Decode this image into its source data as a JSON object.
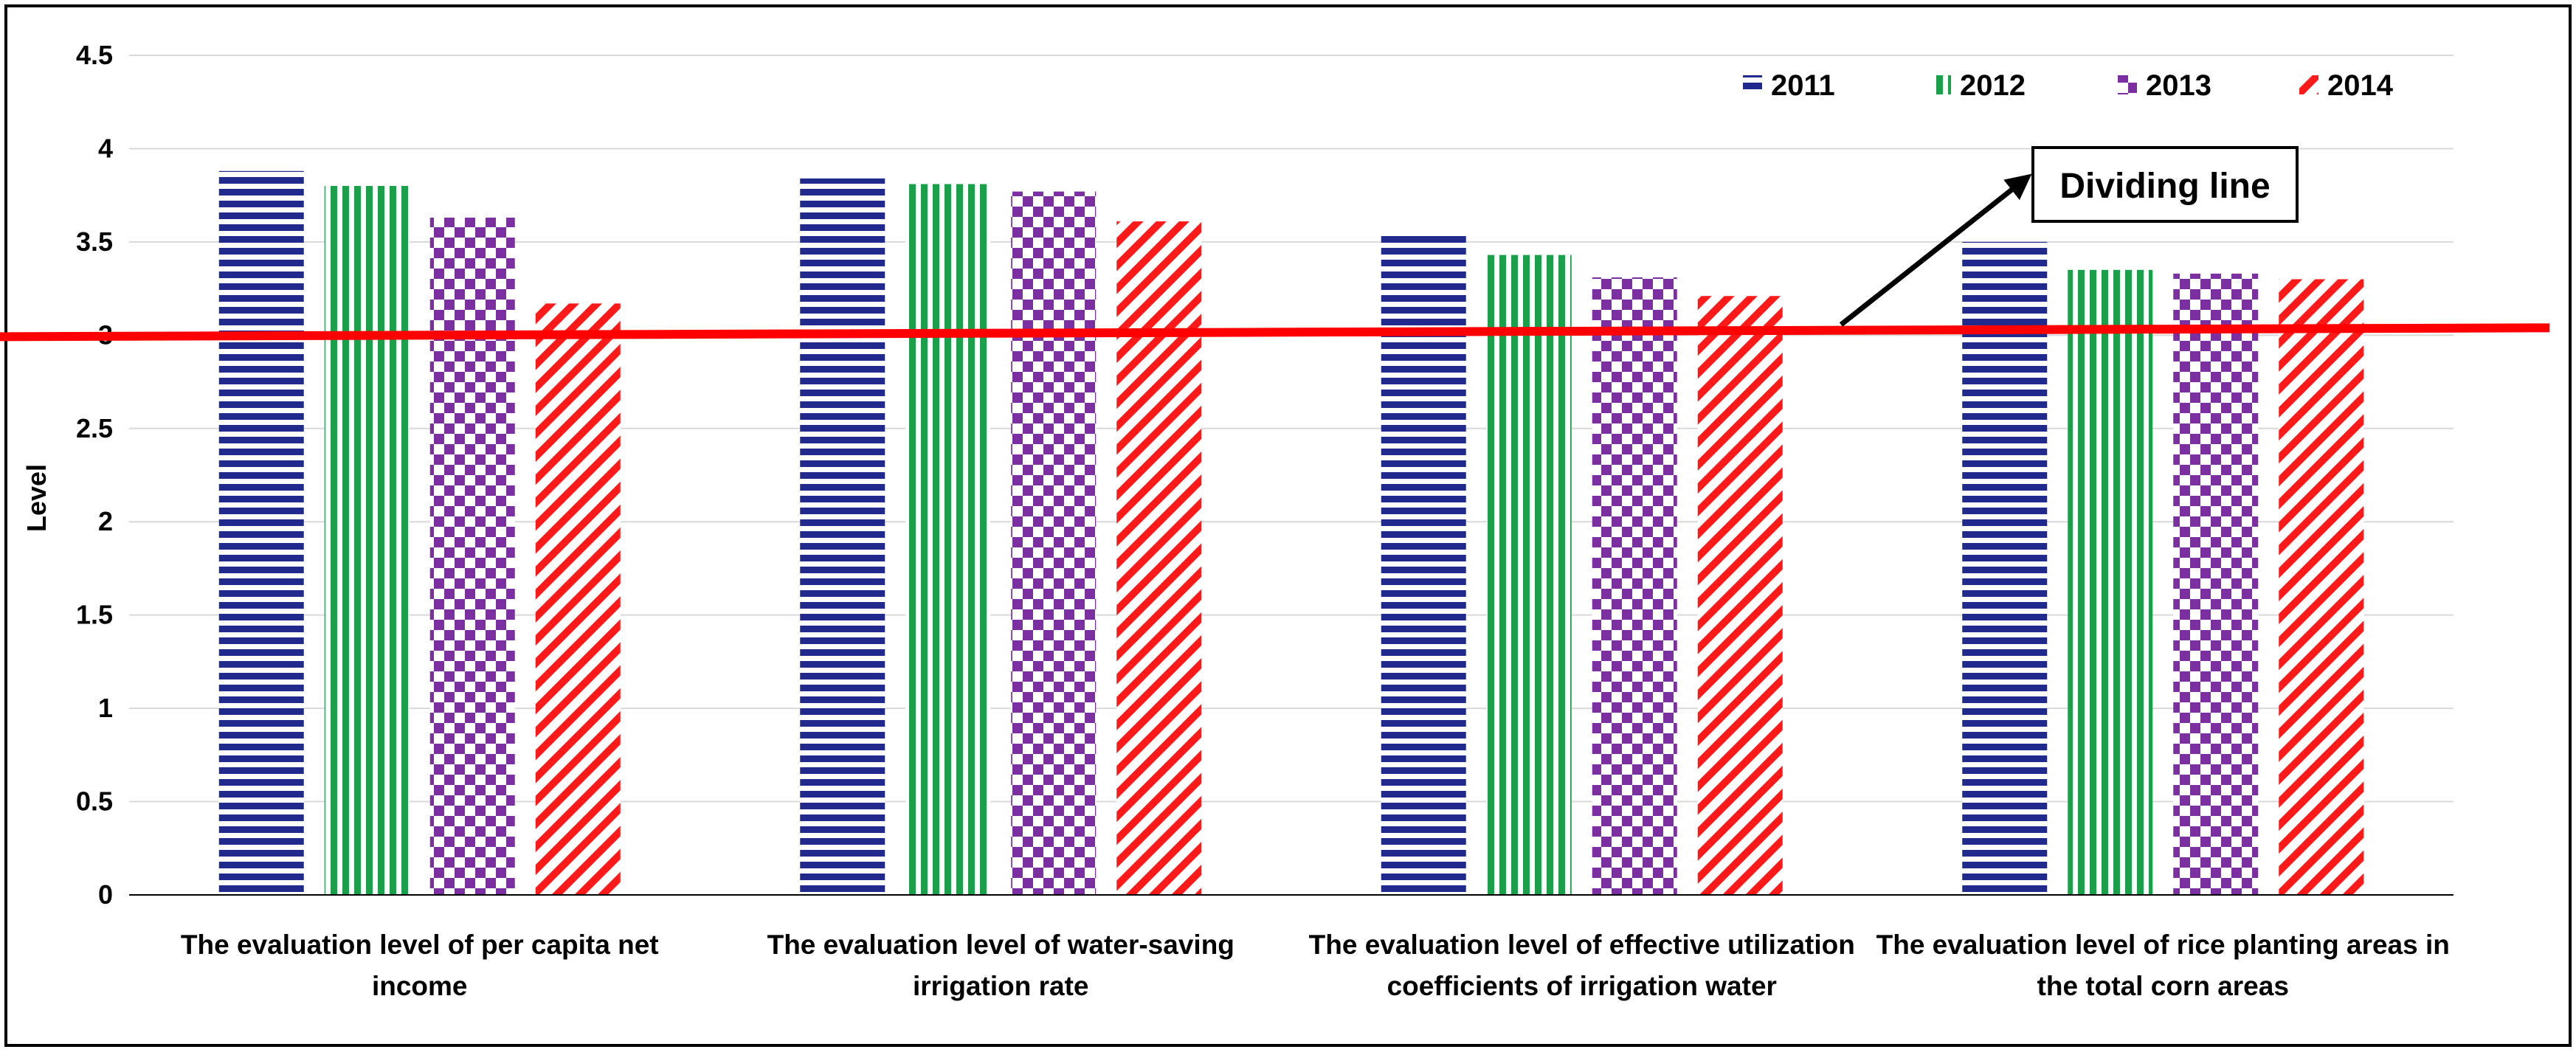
{
  "chart_data": {
    "type": "bar",
    "title": "",
    "xlabel": "",
    "ylabel": "Level",
    "ylim": [
      0,
      4.5
    ],
    "yticks": [
      "0",
      "0.5",
      "1",
      "1.5",
      "2",
      "2.5",
      "3",
      "3.5",
      "4",
      "4.5"
    ],
    "grid": true,
    "legend_position": "top-right",
    "categories": [
      [
        "The evaluation level of per capita net",
        "income"
      ],
      [
        "The evaluation level of water-saving",
        "irrigation rate"
      ],
      [
        "The evaluation level of effective utilization",
        "coefficients of irrigation water"
      ],
      [
        "The evaluation level of rice planting areas in",
        "the total corn areas"
      ]
    ],
    "series": [
      {
        "name": "2011",
        "values": [
          3.88,
          3.84,
          3.55,
          3.5
        ],
        "color": "#1f2a8c",
        "pattern": "horizontal-stripes"
      },
      {
        "name": "2012",
        "values": [
          3.8,
          3.81,
          3.43,
          3.35
        ],
        "color": "#1aa04a",
        "pattern": "vertical-stripes"
      },
      {
        "name": "2013",
        "values": [
          3.63,
          3.77,
          3.31,
          3.33
        ],
        "color": "#7b2fa0",
        "pattern": "checkerboard"
      },
      {
        "name": "2014",
        "values": [
          3.17,
          3.61,
          3.21,
          3.3
        ],
        "color": "#ff1a1a",
        "pattern": "diagonal-stripes"
      }
    ],
    "reference_line": {
      "y": 3,
      "color": "#ff0000"
    },
    "annotation": {
      "text": "Dividing line"
    }
  }
}
